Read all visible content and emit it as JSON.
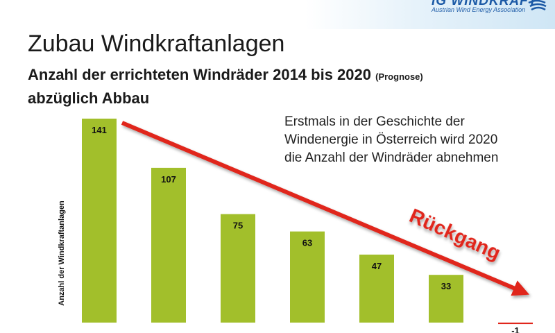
{
  "logo": {
    "name": "IG WINDKRAFT",
    "tagline": "Austrian Wind Energy Association",
    "icon": "wind-swirl-icon"
  },
  "slide": {
    "title": "Zubau Windkraftanlagen",
    "subtitle_main": "Anzahl der errichteten Windräder 2014 bis 2020",
    "subtitle_note": "(Prognose)",
    "subtitle_line2": "abzüglich Abbau",
    "annotation": "Erstmals in der Geschichte der Windenergie in Österreich wird 2020 die Anzahl der Windräder abnehmen",
    "trend_label": "Rückgang"
  },
  "colors": {
    "bar": "#a2bf2b",
    "negative_bar": "#e0261c",
    "arrow": "#e0261c",
    "logo": "#1c5aa6"
  },
  "chart_data": {
    "type": "bar",
    "title": "",
    "ylabel": "Anzahl der Windkraftanlagen",
    "xlabel": "",
    "values": [
      141,
      107,
      75,
      63,
      47,
      33,
      -1
    ],
    "value_labels": [
      "141",
      "107",
      "75",
      "63",
      "47",
      "33",
      "-1"
    ],
    "ylim": [
      -5,
      145
    ],
    "grid": false,
    "legend": "none"
  }
}
